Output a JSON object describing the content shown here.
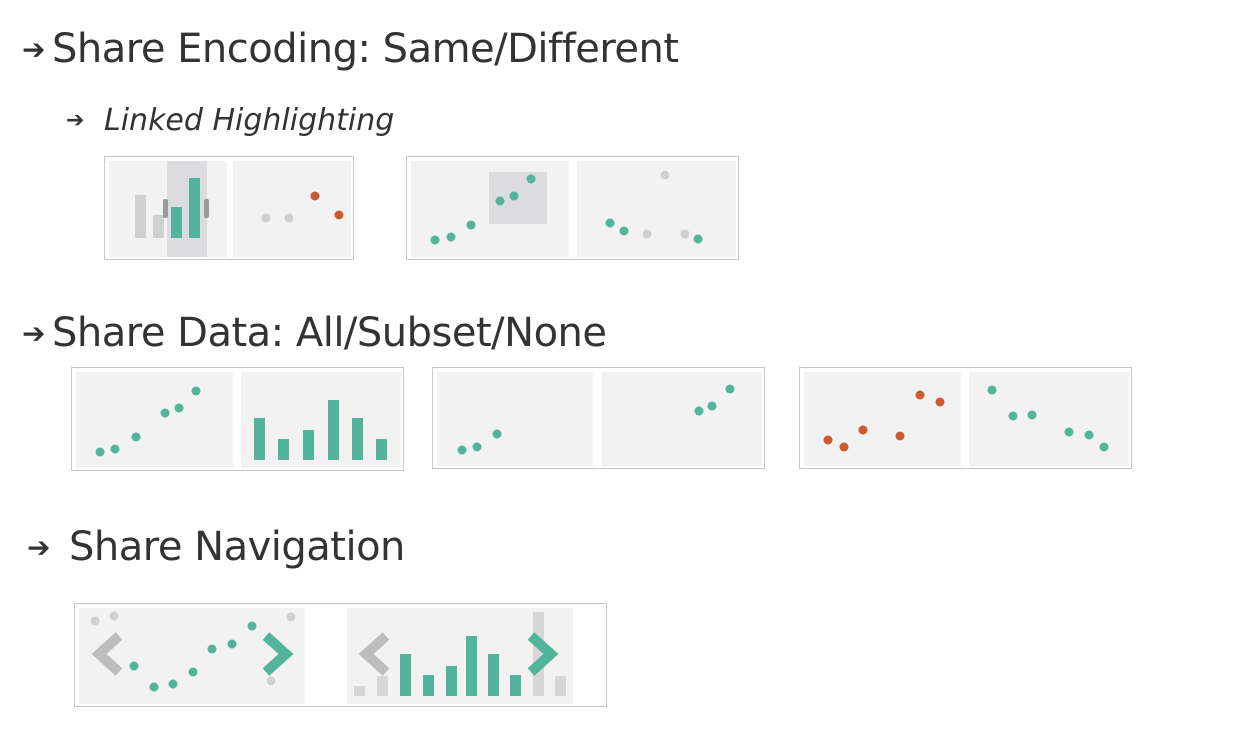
{
  "headings": {
    "share_encoding": "Share Encoding: Same/Different",
    "linked_highlighting": "Linked Highlighting",
    "share_data": "Share Data: All/Subset/None",
    "share_navigation": "Share Navigation"
  },
  "icons": {
    "bullet": "arrow-right-icon",
    "nav_prev": "chevron-left-icon",
    "nav_next": "chevron-right-icon"
  },
  "colors": {
    "teal": "#52b49a",
    "orange": "#cc5a33",
    "gray": "#d0d0d0",
    "dark_gray": "#9a9a9a",
    "panel": "#f2f2f2",
    "highlight": "#dcdcde"
  }
}
